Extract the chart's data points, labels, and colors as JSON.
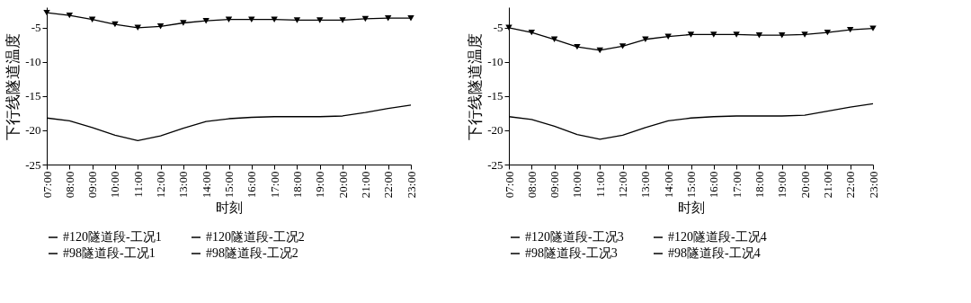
{
  "chart_data": [
    {
      "type": "line",
      "xlabel": "时刻",
      "ylabel": "下行线隧道温度",
      "xlim": [
        7,
        23
      ],
      "ylim": [
        -25,
        -2
      ],
      "yticks": [
        -25,
        -20,
        -15,
        -10,
        -5
      ],
      "xticks": [
        {
          "value": 7,
          "label": "07:00"
        },
        {
          "value": 8,
          "label": "08:00"
        },
        {
          "value": 9,
          "label": "09:00"
        },
        {
          "value": 10,
          "label": "10:00"
        },
        {
          "value": 11,
          "label": "11:00"
        },
        {
          "value": 12,
          "label": "12:00"
        },
        {
          "value": 13,
          "label": "13:00"
        },
        {
          "value": 14,
          "label": "14:00"
        },
        {
          "value": 15,
          "label": "15:00"
        },
        {
          "value": 16,
          "label": "16:00"
        },
        {
          "value": 17,
          "label": "17:00"
        },
        {
          "value": 18,
          "label": "18:00"
        },
        {
          "value": 19,
          "label": "19:00"
        },
        {
          "value": 20,
          "label": "20:00"
        },
        {
          "value": 21,
          "label": "21:00"
        },
        {
          "value": 22,
          "label": "22:00"
        },
        {
          "value": 23,
          "label": "23:00"
        }
      ],
      "x": [
        7,
        8,
        9,
        10,
        11,
        12,
        13,
        14,
        15,
        16,
        17,
        18,
        19,
        20,
        21,
        22,
        23
      ],
      "grid": false,
      "legend": "bottom",
      "series": [
        {
          "name": "#120隧道段-工况1",
          "color": "#000000",
          "marker": "none",
          "values": [
            -18.2,
            -18.6,
            -19.6,
            -20.7,
            -21.5,
            -20.8,
            -19.7,
            -18.7,
            -18.3,
            -18.1,
            -18.0,
            -18.0,
            -18.0,
            -17.9,
            -17.4,
            -16.8,
            -16.3
          ]
        },
        {
          "name": "#120隧道段-工况2",
          "color": "#000000",
          "marker": "none",
          "values": [
            null,
            null,
            null,
            null,
            null,
            null,
            null,
            null,
            null,
            null,
            null,
            null,
            null,
            null,
            null,
            null,
            null
          ]
        },
        {
          "name": "#98隧道段-工况1",
          "color": "#000000",
          "marker": "none",
          "values": [
            null,
            null,
            null,
            null,
            null,
            null,
            null,
            null,
            null,
            null,
            null,
            null,
            null,
            null,
            null,
            null,
            null
          ]
        },
        {
          "name": "#98隧道段-工况2",
          "color": "#000000",
          "marker": "triangle",
          "values": [
            -2.8,
            -3.2,
            -3.8,
            -4.5,
            -5.0,
            -4.8,
            -4.3,
            -4.0,
            -3.8,
            -3.8,
            -3.8,
            -3.9,
            -3.9,
            -3.9,
            -3.7,
            -3.6,
            -3.6
          ]
        }
      ]
    },
    {
      "type": "line",
      "xlabel": "时刻",
      "ylabel": "下行线隧道温度",
      "xlim": [
        7,
        23
      ],
      "ylim": [
        -25,
        -2
      ],
      "yticks": [
        -25,
        -20,
        -15,
        -10,
        -5
      ],
      "xticks": [
        {
          "value": 7,
          "label": "07:00"
        },
        {
          "value": 8,
          "label": "08:00"
        },
        {
          "value": 9,
          "label": "09:00"
        },
        {
          "value": 10,
          "label": "10:00"
        },
        {
          "value": 11,
          "label": "11:00"
        },
        {
          "value": 12,
          "label": "12:00"
        },
        {
          "value": 13,
          "label": "13:00"
        },
        {
          "value": 14,
          "label": "14:00"
        },
        {
          "value": 15,
          "label": "15:00"
        },
        {
          "value": 16,
          "label": "16:00"
        },
        {
          "value": 17,
          "label": "17:00"
        },
        {
          "value": 18,
          "label": "18:00"
        },
        {
          "value": 19,
          "label": "19:00"
        },
        {
          "value": 20,
          "label": "20:00"
        },
        {
          "value": 21,
          "label": "21:00"
        },
        {
          "value": 22,
          "label": "22:00"
        },
        {
          "value": 23,
          "label": "23:00"
        }
      ],
      "x": [
        7,
        8,
        9,
        10,
        11,
        12,
        13,
        14,
        15,
        16,
        17,
        18,
        19,
        20,
        21,
        22,
        23
      ],
      "grid": false,
      "legend": "bottom",
      "series": [
        {
          "name": "#120隧道段-工况3",
          "color": "#000000",
          "marker": "none",
          "values": [
            -18.0,
            -18.4,
            -19.4,
            -20.6,
            -21.3,
            -20.7,
            -19.6,
            -18.6,
            -18.2,
            -18.0,
            -17.9,
            -17.9,
            -17.9,
            -17.8,
            -17.2,
            -16.6,
            -16.1
          ]
        },
        {
          "name": "#120隧道段-工况4",
          "color": "#000000",
          "marker": "none",
          "values": [
            null,
            null,
            null,
            null,
            null,
            null,
            null,
            null,
            null,
            null,
            null,
            null,
            null,
            null,
            null,
            null,
            null
          ]
        },
        {
          "name": "#98隧道段-工况3",
          "color": "#000000",
          "marker": "none",
          "values": [
            null,
            null,
            null,
            null,
            null,
            null,
            null,
            null,
            null,
            null,
            null,
            null,
            null,
            null,
            null,
            null,
            null
          ]
        },
        {
          "name": "#98隧道段-工况4",
          "color": "#000000",
          "marker": "triangle",
          "values": [
            -5.0,
            -5.7,
            -6.7,
            -7.8,
            -8.3,
            -7.7,
            -6.7,
            -6.3,
            -6.0,
            -6.0,
            -6.0,
            -6.1,
            -6.1,
            -6.0,
            -5.7,
            -5.3,
            -5.1
          ]
        }
      ]
    }
  ]
}
